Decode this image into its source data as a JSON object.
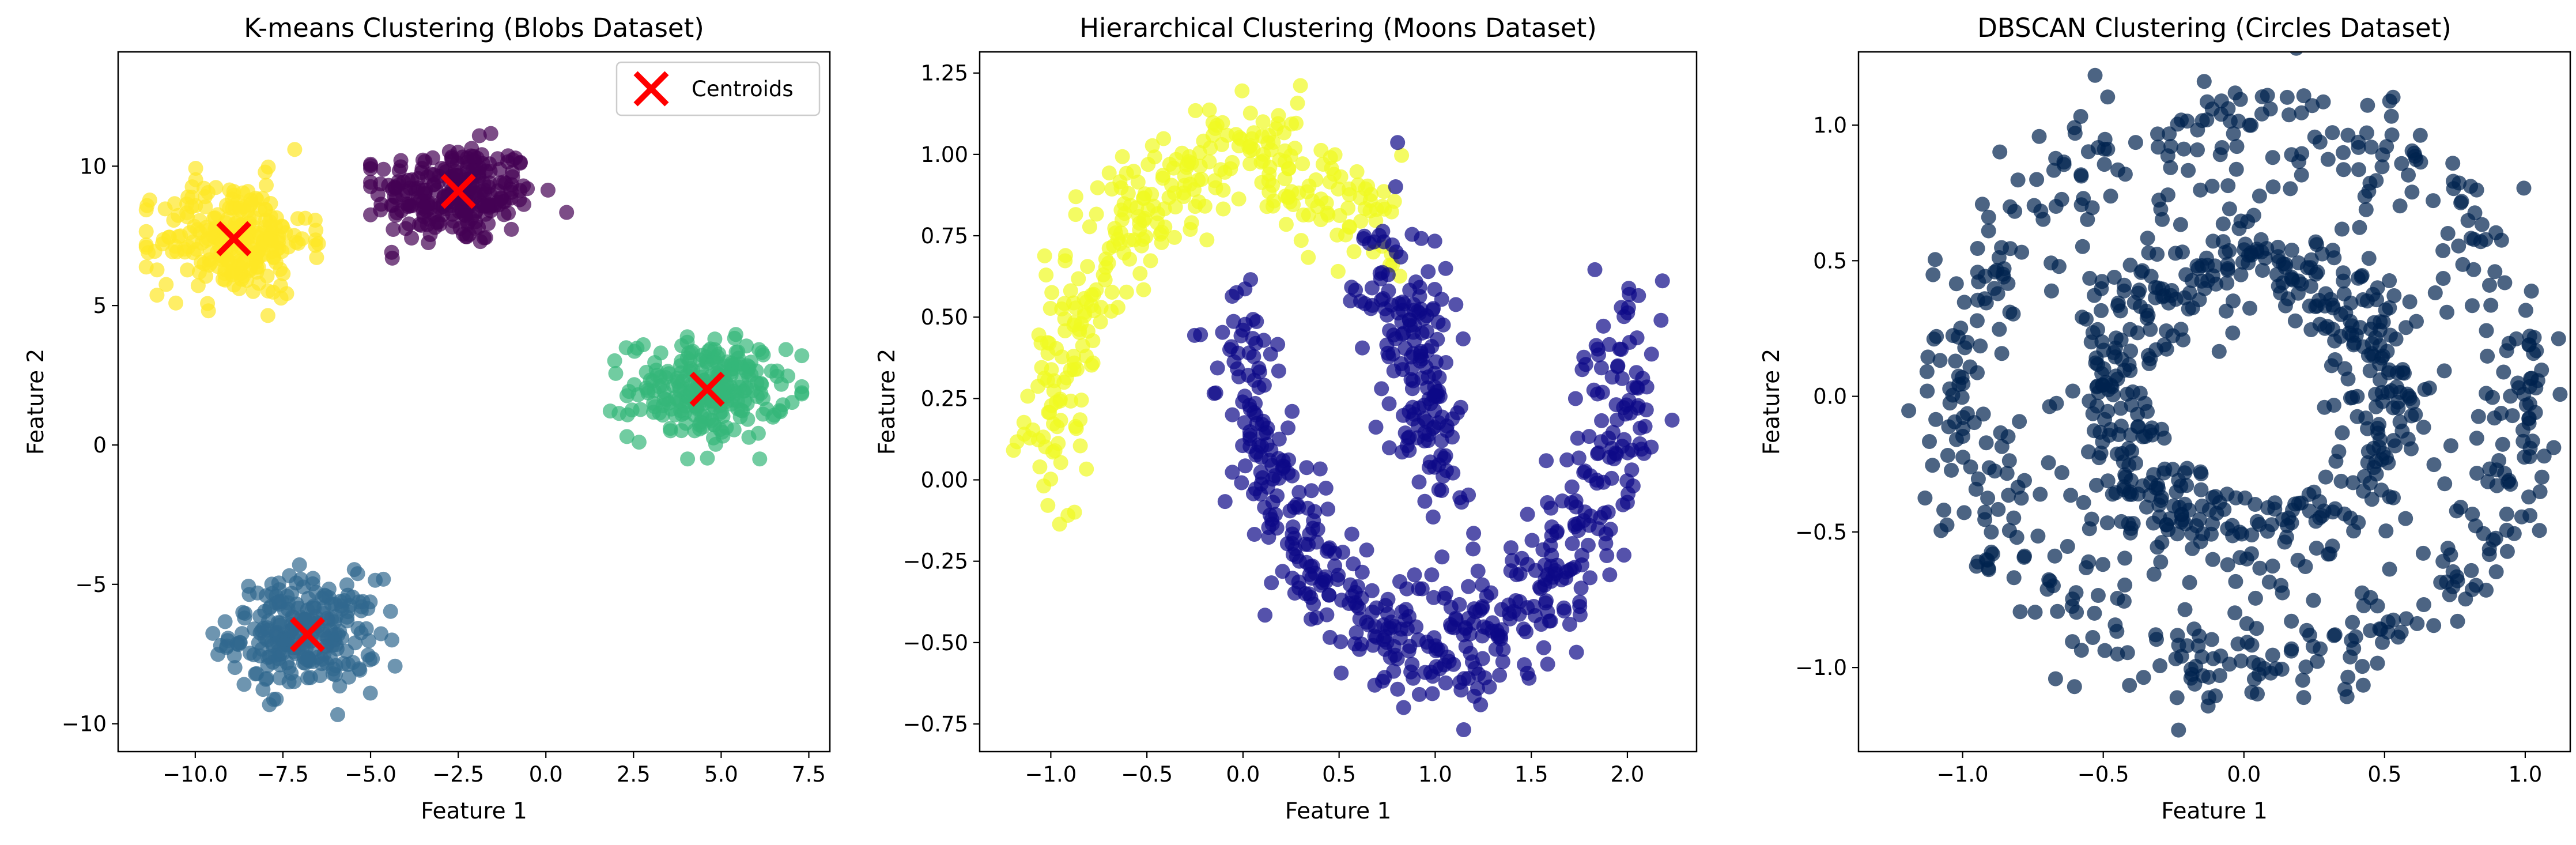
{
  "chart_data": [
    {
      "type": "scatter",
      "title": "K-means Clustering (Blobs Dataset)",
      "xlabel": "Feature 1",
      "ylabel": "Feature 2",
      "xlim": [
        -12.2,
        8.1
      ],
      "ylim": [
        -11.0,
        14.1
      ],
      "xticks": [
        -10.0,
        -7.5,
        -5.0,
        -2.5,
        0.0,
        2.5,
        5.0,
        7.5
      ],
      "xtick_labels": [
        "−10.0",
        "−7.5",
        "−5.0",
        "−2.5",
        "0.0",
        "2.5",
        "5.0",
        "7.5"
      ],
      "yticks": [
        -10,
        -5,
        0,
        5,
        10
      ],
      "ytick_labels": [
        "−10",
        "−5",
        "0",
        "5",
        "10"
      ],
      "clusters": [
        {
          "label": 0,
          "color": "#440154",
          "center": [
            -2.6,
            9.0
          ],
          "spread": [
            1.15,
            0.9
          ],
          "n": 250,
          "x_range": [
            -5.0,
            0.6
          ],
          "y_range": [
            6.7,
            12.9
          ]
        },
        {
          "label": 1,
          "color": "#31688e",
          "center": [
            -6.9,
            -6.8
          ],
          "spread": [
            1.05,
            1.0
          ],
          "n": 250,
          "x_range": [
            -9.5,
            -4.3
          ],
          "y_range": [
            -9.8,
            -4.3
          ]
        },
        {
          "label": 2,
          "color": "#35b779",
          "center": [
            4.6,
            2.0
          ],
          "spread": [
            1.1,
            0.9
          ],
          "n": 250,
          "x_range": [
            1.8,
            7.3
          ],
          "y_range": [
            -0.5,
            4.7
          ]
        },
        {
          "label": 3,
          "color": "#fde725",
          "center": [
            -8.9,
            7.4
          ],
          "spread": [
            1.05,
            1.05
          ],
          "n": 250,
          "x_range": [
            -11.4,
            -5.0
          ],
          "y_range": [
            4.3,
            10.6
          ]
        }
      ],
      "centroids": {
        "label": "Centroids",
        "color": "#ff0000",
        "points": [
          [
            -2.5,
            9.1
          ],
          [
            -8.9,
            7.4
          ],
          [
            4.6,
            2.0
          ],
          [
            -6.8,
            -6.8
          ]
        ]
      },
      "legend": {
        "placement": "upper right",
        "entries": [
          "Centroids"
        ]
      }
    },
    {
      "type": "scatter",
      "title": "Hierarchical Clustering (Moons Dataset)",
      "xlabel": "Feature 1",
      "ylabel": "Feature 2",
      "xlim": [
        -1.37,
        2.36
      ],
      "ylim": [
        -0.835,
        1.315
      ],
      "xticks": [
        -1.0,
        -0.5,
        0.0,
        0.5,
        1.0,
        1.5,
        2.0
      ],
      "xtick_labels": [
        "−1.0",
        "−0.5",
        "0.0",
        "0.5",
        "1.0",
        "1.5",
        "2.0"
      ],
      "yticks": [
        -0.75,
        -0.5,
        -0.25,
        0.0,
        0.25,
        0.5,
        0.75,
        1.0,
        1.25
      ],
      "ytick_labels": [
        "−0.75",
        "−0.50",
        "−0.25",
        "0.00",
        "0.25",
        "0.50",
        "0.75",
        "1.00",
        "1.25"
      ],
      "clusters": [
        {
          "label": 0,
          "color": "#f0f921",
          "shape": "upper-moon",
          "angle_range_deg": [
            45,
            180
          ],
          "center": [
            0.0,
            0.0
          ],
          "radius": 1.0,
          "noise": 0.1,
          "n": 330
        },
        {
          "label": 1,
          "color": "#0d0887",
          "shape": "upper-moon-tail",
          "angle_range_deg": [
            0,
            45
          ],
          "center": [
            0.0,
            0.0
          ],
          "radius": 1.0,
          "noise": 0.1,
          "n": 170
        },
        {
          "label": 1,
          "color": "#0d0887",
          "shape": "lower-moon",
          "angle_range_deg": [
            0,
            180
          ],
          "center": [
            1.0,
            0.5
          ],
          "radius": 1.0,
          "noise": 0.1,
          "n": 500
        }
      ]
    },
    {
      "type": "scatter",
      "title": "DBSCAN Clustering (Circles Dataset)",
      "xlabel": "Feature 1",
      "ylabel": "Feature 2",
      "xlim": [
        -1.37,
        1.16
      ],
      "ylim": [
        -1.31,
        1.27
      ],
      "xticks": [
        -1.0,
        -0.5,
        0.0,
        0.5,
        1.0
      ],
      "xtick_labels": [
        "−1.0",
        "−0.5",
        "0.0",
        "0.5",
        "1.0"
      ],
      "yticks": [
        -1.0,
        -0.5,
        0.0,
        0.5,
        1.0
      ],
      "ytick_labels": [
        "−1.0",
        "−0.5",
        "0.0",
        "0.5",
        "1.0"
      ],
      "clusters": [
        {
          "label": 0,
          "color": "#00224e",
          "shape": "ring",
          "radius": 1.0,
          "noise": 0.1,
          "n": 500
        },
        {
          "label": 0,
          "color": "#00224e",
          "shape": "ring",
          "radius": 0.5,
          "noise": 0.1,
          "n": 500
        }
      ]
    }
  ]
}
